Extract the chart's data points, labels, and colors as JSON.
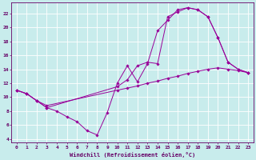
{
  "xlabel": "Windchill (Refroidissement éolien,°C)",
  "background_color": "#c8ecec",
  "grid_color": "#ffffff",
  "line_color": "#990099",
  "xlim": [
    -0.5,
    23.5
  ],
  "ylim": [
    3.5,
    23.5
  ],
  "xticks": [
    0,
    1,
    2,
    3,
    4,
    5,
    6,
    7,
    8,
    9,
    10,
    11,
    12,
    13,
    14,
    15,
    16,
    17,
    18,
    19,
    20,
    21,
    22,
    23
  ],
  "yticks": [
    4,
    6,
    8,
    10,
    12,
    14,
    16,
    18,
    20,
    22
  ],
  "line1_x": [
    0,
    1,
    2,
    3,
    4,
    5,
    6,
    7,
    8,
    9,
    10,
    11,
    12,
    13,
    14,
    15,
    16,
    17,
    18,
    19,
    20,
    21,
    22,
    23
  ],
  "line1_y": [
    11.0,
    10.5,
    9.5,
    8.5,
    8.0,
    7.2,
    6.5,
    5.2,
    4.6,
    7.8,
    12.0,
    14.5,
    12.2,
    14.8,
    19.5,
    21.0,
    22.5,
    22.8,
    22.5,
    21.5,
    18.5,
    15.0,
    14.0,
    13.5
  ],
  "line2_x": [
    0,
    1,
    2,
    3,
    10,
    11,
    12,
    13,
    14,
    15,
    16,
    17,
    18,
    19,
    20,
    21,
    22,
    23
  ],
  "line2_y": [
    11.0,
    10.5,
    9.5,
    8.8,
    11.0,
    11.3,
    11.6,
    12.0,
    12.3,
    12.7,
    13.0,
    13.4,
    13.7,
    14.0,
    14.2,
    14.0,
    13.8,
    13.5
  ],
  "line3_x": [
    0,
    1,
    2,
    3,
    10,
    11,
    12,
    13,
    14,
    15,
    16,
    17,
    18,
    19,
    20,
    21,
    22,
    23
  ],
  "line3_y": [
    11.0,
    10.5,
    9.5,
    8.5,
    11.5,
    12.5,
    14.5,
    15.0,
    14.8,
    21.5,
    22.2,
    22.8,
    22.5,
    21.5,
    18.5,
    15.0,
    14.0,
    13.5
  ]
}
